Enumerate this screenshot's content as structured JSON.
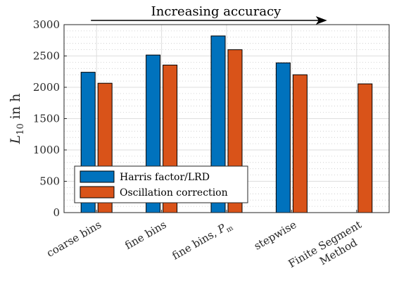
{
  "chart_data": {
    "type": "bar",
    "categories": [
      "coarse bins",
      "fine bins",
      "fine bins, P_m",
      "stepwise",
      "Finite Segment Method"
    ],
    "category_labels": [
      [
        "coarse bins"
      ],
      [
        "fine bins"
      ],
      [
        "fine bins, P",
        "m"
      ],
      [
        "stepwise"
      ],
      [
        "Finite Segment",
        "Method"
      ]
    ],
    "series": [
      {
        "name": "Harris factor/LRD",
        "color": "#0072BD",
        "values": [
          2240,
          2515,
          2820,
          2390,
          null
        ]
      },
      {
        "name": "Oscillation correction",
        "color": "#D95319",
        "values": [
          2065,
          2355,
          2600,
          2200,
          2055
        ]
      }
    ],
    "ylabel_main": "L",
    "ylabel_sub": "10",
    "ylabel_rest": " in h",
    "ylim": [
      0,
      3000
    ],
    "yticks": [
      0,
      500,
      1000,
      1500,
      2000,
      2500,
      3000
    ],
    "grid": true,
    "minor_grid": true,
    "legend_position": "bottom-left",
    "annotation": {
      "text": "Increasing accuracy",
      "arrow_from_category": 0,
      "arrow_to_category": 4
    }
  }
}
